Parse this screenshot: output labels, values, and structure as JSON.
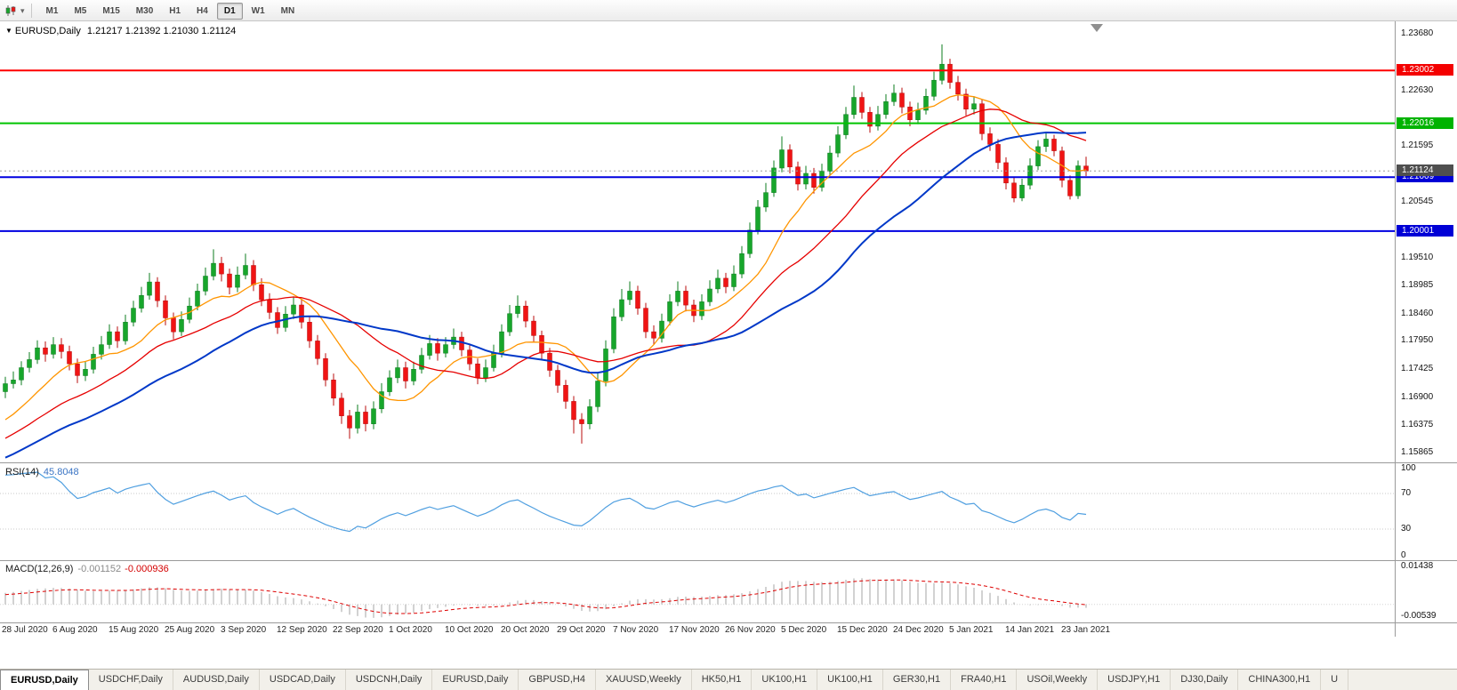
{
  "icons": {
    "dropdown_caret": "▾",
    "chart_menu": "▼"
  },
  "toolbar": {
    "timeframes": [
      {
        "label": "M1",
        "active": false
      },
      {
        "label": "M5",
        "active": false
      },
      {
        "label": "M15",
        "active": false
      },
      {
        "label": "M30",
        "active": false
      },
      {
        "label": "H1",
        "active": false
      },
      {
        "label": "H4",
        "active": false
      },
      {
        "label": "D1",
        "active": true
      },
      {
        "label": "W1",
        "active": false
      },
      {
        "label": "MN",
        "active": false
      }
    ]
  },
  "chart": {
    "symbol": "EURUSD,Daily",
    "ohlc": "1.21217 1.21392 1.21030 1.21124",
    "price_range": {
      "top": 1.2392,
      "bottom": 1.1568
    },
    "axis_ticks": [
      "1.23680",
      "1.22630",
      "1.21595",
      "1.20545",
      "1.19510",
      "1.18985",
      "1.18460",
      "1.17950",
      "1.17425",
      "1.16900",
      "1.16375",
      "1.15865"
    ],
    "hlines": [
      {
        "price": 1.23002,
        "label": "1.23002",
        "color": "#FF0000",
        "badge": "#F40000",
        "width": 2
      },
      {
        "price": 1.22016,
        "label": "1.22016",
        "color": "#00C400",
        "badge": "#00B300",
        "width": 2
      },
      {
        "price": 1.21009,
        "label": "1.21009",
        "color": "#0000E0",
        "badge": "#0000D6",
        "width": 2
      },
      {
        "price": 1.20001,
        "label": "1.20001",
        "color": "#0000E0",
        "badge": "#0000D6",
        "width": 2
      }
    ],
    "current_price": {
      "price": 1.21124,
      "label": "1.21124",
      "badge": "#4F4F4F"
    },
    "colors": {
      "up": "#17A62B",
      "up_dark": "#0D7C1F",
      "down": "#F01414",
      "down_dark": "#B80C0C",
      "current_line": "#9C9C9C"
    },
    "ma": [
      {
        "period": 10,
        "color": "#FF9500",
        "width": 1.3
      },
      {
        "period": 21,
        "color": "#E60000",
        "width": 1.3
      },
      {
        "period": 34,
        "color": "#0038C8",
        "width": 2
      }
    ],
    "date_label_step": 7,
    "date_labels": [
      "28 Jul 2020",
      "6 Aug 2020",
      "15 Aug 2020",
      "25 Aug 2020",
      "3 Sep 2020",
      "12 Sep 2020",
      "22 Sep 2020",
      "1 Oct 2020",
      "10 Oct 2020",
      "20 Oct 2020",
      "29 Oct 2020",
      "7 Nov 2020",
      "17 Nov 2020",
      "26 Nov 2020",
      "5 Dec 2020",
      "15 Dec 2020",
      "24 Dec 2020",
      "5 Jan 2021",
      "14 Jan 2021",
      "23 Jan 2021"
    ],
    "pre_closes": [
      1.145,
      1.1458,
      1.1452,
      1.1466,
      1.1474,
      1.147,
      1.1482,
      1.149,
      1.1486,
      1.1498,
      1.1506,
      1.1502,
      1.1514,
      1.1522,
      1.1518,
      1.153,
      1.1538,
      1.1534,
      1.1546,
      1.1554,
      1.155,
      1.1562,
      1.157,
      1.1566,
      1.1578,
      1.1586,
      1.1582,
      1.1594,
      1.1602,
      1.1598,
      1.161,
      1.1618,
      1.1614,
      1.1626,
      1.1634,
      1.163,
      1.1642,
      1.165,
      1.1658,
      1.169
    ],
    "candles": [
      [
        1.17,
        1.1728,
        1.1688,
        1.1715
      ],
      [
        1.1715,
        1.1738,
        1.1706,
        1.1722
      ],
      [
        1.1722,
        1.1757,
        1.1712,
        1.1745
      ],
      [
        1.1745,
        1.1774,
        1.1736,
        1.176
      ],
      [
        1.176,
        1.1796,
        1.1752,
        1.1782
      ],
      [
        1.1782,
        1.1794,
        1.1756,
        1.177
      ],
      [
        1.177,
        1.1802,
        1.1762,
        1.1788
      ],
      [
        1.1788,
        1.18,
        1.1762,
        1.1775
      ],
      [
        1.1775,
        1.1786,
        1.174,
        1.1752
      ],
      [
        1.1752,
        1.1762,
        1.1716,
        1.173
      ],
      [
        1.173,
        1.1756,
        1.172,
        1.1742
      ],
      [
        1.1742,
        1.1784,
        1.1734,
        1.177
      ],
      [
        1.177,
        1.1804,
        1.176,
        1.1788
      ],
      [
        1.1788,
        1.1826,
        1.178,
        1.1812
      ],
      [
        1.1812,
        1.1822,
        1.1782,
        1.1795
      ],
      [
        1.1795,
        1.1844,
        1.1788,
        1.183
      ],
      [
        1.183,
        1.187,
        1.1822,
        1.1856
      ],
      [
        1.1856,
        1.1896,
        1.1848,
        1.188
      ],
      [
        1.188,
        1.1922,
        1.1872,
        1.1905
      ],
      [
        1.1905,
        1.1914,
        1.1858,
        1.187
      ],
      [
        1.187,
        1.188,
        1.1824,
        1.1838
      ],
      [
        1.1838,
        1.1848,
        1.1798,
        1.1812
      ],
      [
        1.1812,
        1.185,
        1.1804,
        1.1835
      ],
      [
        1.1835,
        1.1876,
        1.1828,
        1.186
      ],
      [
        1.186,
        1.1902,
        1.1852,
        1.1888
      ],
      [
        1.1888,
        1.1932,
        1.188,
        1.1916
      ],
      [
        1.1916,
        1.1966,
        1.1908,
        1.194
      ],
      [
        1.194,
        1.1952,
        1.1906,
        1.192
      ],
      [
        1.192,
        1.193,
        1.1882,
        1.1895
      ],
      [
        1.1895,
        1.1934,
        1.1886,
        1.1918
      ],
      [
        1.1918,
        1.1958,
        1.191,
        1.1936
      ],
      [
        1.1936,
        1.1946,
        1.1888,
        1.19
      ],
      [
        1.19,
        1.1912,
        1.186,
        1.1872
      ],
      [
        1.1872,
        1.1884,
        1.1836,
        1.1848
      ],
      [
        1.1848,
        1.1858,
        1.1808,
        1.182
      ],
      [
        1.182,
        1.186,
        1.1812,
        1.1845
      ],
      [
        1.1845,
        1.1878,
        1.1836,
        1.1862
      ],
      [
        1.1862,
        1.1872,
        1.1818,
        1.183
      ],
      [
        1.183,
        1.184,
        1.1782,
        1.1795
      ],
      [
        1.1795,
        1.1806,
        1.175,
        1.1762
      ],
      [
        1.1762,
        1.1772,
        1.171,
        1.1722
      ],
      [
        1.1722,
        1.1734,
        1.1674,
        1.1688
      ],
      [
        1.1688,
        1.1698,
        1.164,
        1.1655
      ],
      [
        1.1655,
        1.1666,
        1.1612,
        1.1632
      ],
      [
        1.1632,
        1.1676,
        1.1622,
        1.1662
      ],
      [
        1.1662,
        1.1674,
        1.1626,
        1.164
      ],
      [
        1.164,
        1.1682,
        1.163,
        1.1668
      ],
      [
        1.1668,
        1.1716,
        1.166,
        1.17
      ],
      [
        1.17,
        1.174,
        1.1692,
        1.1726
      ],
      [
        1.1726,
        1.176,
        1.1716,
        1.1745
      ],
      [
        1.1745,
        1.1756,
        1.1706,
        1.172
      ],
      [
        1.172,
        1.1756,
        1.1712,
        1.1742
      ],
      [
        1.1742,
        1.1782,
        1.1734,
        1.1768
      ],
      [
        1.1768,
        1.1806,
        1.176,
        1.179
      ],
      [
        1.179,
        1.18,
        1.1758,
        1.1772
      ],
      [
        1.1772,
        1.1802,
        1.1764,
        1.1788
      ],
      [
        1.1788,
        1.1818,
        1.178,
        1.1802
      ],
      [
        1.1802,
        1.1812,
        1.1766,
        1.1778
      ],
      [
        1.1778,
        1.1788,
        1.174,
        1.1752
      ],
      [
        1.1752,
        1.1762,
        1.1714,
        1.1726
      ],
      [
        1.1726,
        1.176,
        1.1718,
        1.1745
      ],
      [
        1.1745,
        1.1788,
        1.1738,
        1.1772
      ],
      [
        1.1772,
        1.1826,
        1.1764,
        1.1812
      ],
      [
        1.1812,
        1.1862,
        1.1804,
        1.1846
      ],
      [
        1.1846,
        1.188,
        1.1838,
        1.186
      ],
      [
        1.186,
        1.187,
        1.182,
        1.1832
      ],
      [
        1.1832,
        1.1842,
        1.1792,
        1.1805
      ],
      [
        1.1805,
        1.1814,
        1.176,
        1.1772
      ],
      [
        1.1772,
        1.1782,
        1.1728,
        1.174
      ],
      [
        1.174,
        1.175,
        1.1698,
        1.1712
      ],
      [
        1.1712,
        1.1722,
        1.1668,
        1.1682
      ],
      [
        1.1682,
        1.1692,
        1.1622,
        1.1648
      ],
      [
        1.1648,
        1.166,
        1.1603,
        1.164
      ],
      [
        1.164,
        1.1686,
        1.163,
        1.1672
      ],
      [
        1.1672,
        1.1736,
        1.1662,
        1.172
      ],
      [
        1.172,
        1.1796,
        1.171,
        1.178
      ],
      [
        1.178,
        1.1856,
        1.1772,
        1.184
      ],
      [
        1.184,
        1.1892,
        1.1832,
        1.1872
      ],
      [
        1.1872,
        1.1906,
        1.1862,
        1.1888
      ],
      [
        1.1888,
        1.1898,
        1.1844,
        1.1856
      ],
      [
        1.1856,
        1.1866,
        1.18,
        1.1812
      ],
      [
        1.1812,
        1.1824,
        1.1788,
        1.18
      ],
      [
        1.18,
        1.1846,
        1.1792,
        1.1832
      ],
      [
        1.1832,
        1.1882,
        1.1824,
        1.1868
      ],
      [
        1.1868,
        1.1906,
        1.186,
        1.1888
      ],
      [
        1.1888,
        1.1898,
        1.185,
        1.1862
      ],
      [
        1.1862,
        1.1872,
        1.183,
        1.1842
      ],
      [
        1.1842,
        1.1882,
        1.1834,
        1.1868
      ],
      [
        1.1868,
        1.1908,
        1.186,
        1.1892
      ],
      [
        1.1892,
        1.1928,
        1.1884,
        1.1912
      ],
      [
        1.1912,
        1.1922,
        1.1884,
        1.1896
      ],
      [
        1.1896,
        1.1936,
        1.1888,
        1.192
      ],
      [
        1.192,
        1.1972,
        1.1912,
        1.1958
      ],
      [
        1.1958,
        1.2016,
        1.195,
        1.2002
      ],
      [
        1.2002,
        1.2058,
        1.1994,
        1.2045
      ],
      [
        1.2045,
        1.209,
        1.2036,
        1.2072
      ],
      [
        1.2072,
        1.2132,
        1.2064,
        1.2118
      ],
      [
        1.2118,
        1.2177,
        1.211,
        1.2152
      ],
      [
        1.2152,
        1.2162,
        1.2108,
        1.212
      ],
      [
        1.212,
        1.213,
        1.2076,
        1.2088
      ],
      [
        1.2088,
        1.2122,
        1.2078,
        1.2108
      ],
      [
        1.2108,
        1.2118,
        1.207,
        1.2082
      ],
      [
        1.2082,
        1.2126,
        1.2074,
        1.2112
      ],
      [
        1.2112,
        1.216,
        1.2104,
        1.2146
      ],
      [
        1.2146,
        1.2196,
        1.2138,
        1.218
      ],
      [
        1.218,
        1.2232,
        1.2172,
        1.2218
      ],
      [
        1.2218,
        1.2272,
        1.221,
        1.225
      ],
      [
        1.225,
        1.226,
        1.221,
        1.2222
      ],
      [
        1.2222,
        1.2232,
        1.2184,
        1.2196
      ],
      [
        1.2196,
        1.2234,
        1.2188,
        1.2218
      ],
      [
        1.2218,
        1.2256,
        1.221,
        1.2242
      ],
      [
        1.2242,
        1.2274,
        1.2234,
        1.2258
      ],
      [
        1.2258,
        1.2268,
        1.222,
        1.2232
      ],
      [
        1.2232,
        1.2242,
        1.2196,
        1.2208
      ],
      [
        1.2208,
        1.224,
        1.22,
        1.2226
      ],
      [
        1.2226,
        1.2266,
        1.2218,
        1.2252
      ],
      [
        1.2252,
        1.2298,
        1.2244,
        1.2282
      ],
      [
        1.2282,
        1.2349,
        1.2274,
        1.2312
      ],
      [
        1.2312,
        1.2322,
        1.2266,
        1.2278
      ],
      [
        1.2278,
        1.229,
        1.2244,
        1.2256
      ],
      [
        1.2256,
        1.2266,
        1.2216,
        1.2228
      ],
      [
        1.2228,
        1.2252,
        1.2218,
        1.2238
      ],
      [
        1.2238,
        1.2246,
        1.217,
        1.2182
      ],
      [
        1.2182,
        1.2194,
        1.215,
        1.2162
      ],
      [
        1.2162,
        1.2172,
        1.2116,
        1.2128
      ],
      [
        1.2128,
        1.2138,
        1.2078,
        1.209
      ],
      [
        1.209,
        1.21,
        1.2054,
        1.2062
      ],
      [
        1.2062,
        1.2098,
        1.2056,
        1.2086
      ],
      [
        1.2086,
        1.2136,
        1.2078,
        1.2122
      ],
      [
        1.2122,
        1.217,
        1.2114,
        1.2158
      ],
      [
        1.2158,
        1.2186,
        1.2148,
        1.2172
      ],
      [
        1.2172,
        1.218,
        1.214,
        1.215
      ],
      [
        1.215,
        1.2158,
        1.2082,
        1.2095
      ],
      [
        1.2095,
        1.2104,
        1.2059,
        1.2066
      ],
      [
        1.2066,
        1.2132,
        1.206,
        1.2122
      ],
      [
        1.21217,
        1.21392,
        1.2103,
        1.21124
      ]
    ]
  },
  "rsi": {
    "label": "RSI(14)",
    "value": "45.8048",
    "period": 14,
    "levels": [
      100,
      70,
      30,
      0
    ],
    "line_color": "#4F9FE0"
  },
  "macd": {
    "label": "MACD(12,26,9)",
    "value_main": "-0.001152",
    "value_signal": "-0.000936",
    "fast": 12,
    "slow": 26,
    "signal": 9,
    "axis_top": "0.01438",
    "axis_bottom": "-0.00539",
    "range": {
      "top": 0.01438,
      "bottom": -0.00539
    },
    "hist_color": "#A6A6A6",
    "signal_color": "#DE0000"
  },
  "tabs": [
    {
      "label": "EURUSD,Daily",
      "active": true
    },
    {
      "label": "USDCHF,Daily",
      "active": false
    },
    {
      "label": "AUDUSD,Daily",
      "active": false
    },
    {
      "label": "USDCAD,Daily",
      "active": false
    },
    {
      "label": "USDCNH,Daily",
      "active": false
    },
    {
      "label": "EURUSD,Daily",
      "active": false
    },
    {
      "label": "GBPUSD,H4",
      "active": false
    },
    {
      "label": "XAUUSD,Weekly",
      "active": false
    },
    {
      "label": "HK50,H1",
      "active": false
    },
    {
      "label": "UK100,H1",
      "active": false
    },
    {
      "label": "UK100,H1",
      "active": false
    },
    {
      "label": "GER30,H1",
      "active": false
    },
    {
      "label": "FRA40,H1",
      "active": false
    },
    {
      "label": "USOil,Weekly",
      "active": false
    },
    {
      "label": "USDJPY,H1",
      "active": false
    },
    {
      "label": "DJ30,Daily",
      "active": false
    },
    {
      "label": "CHINA300,H1",
      "active": false
    },
    {
      "label": "U",
      "active": false
    }
  ]
}
